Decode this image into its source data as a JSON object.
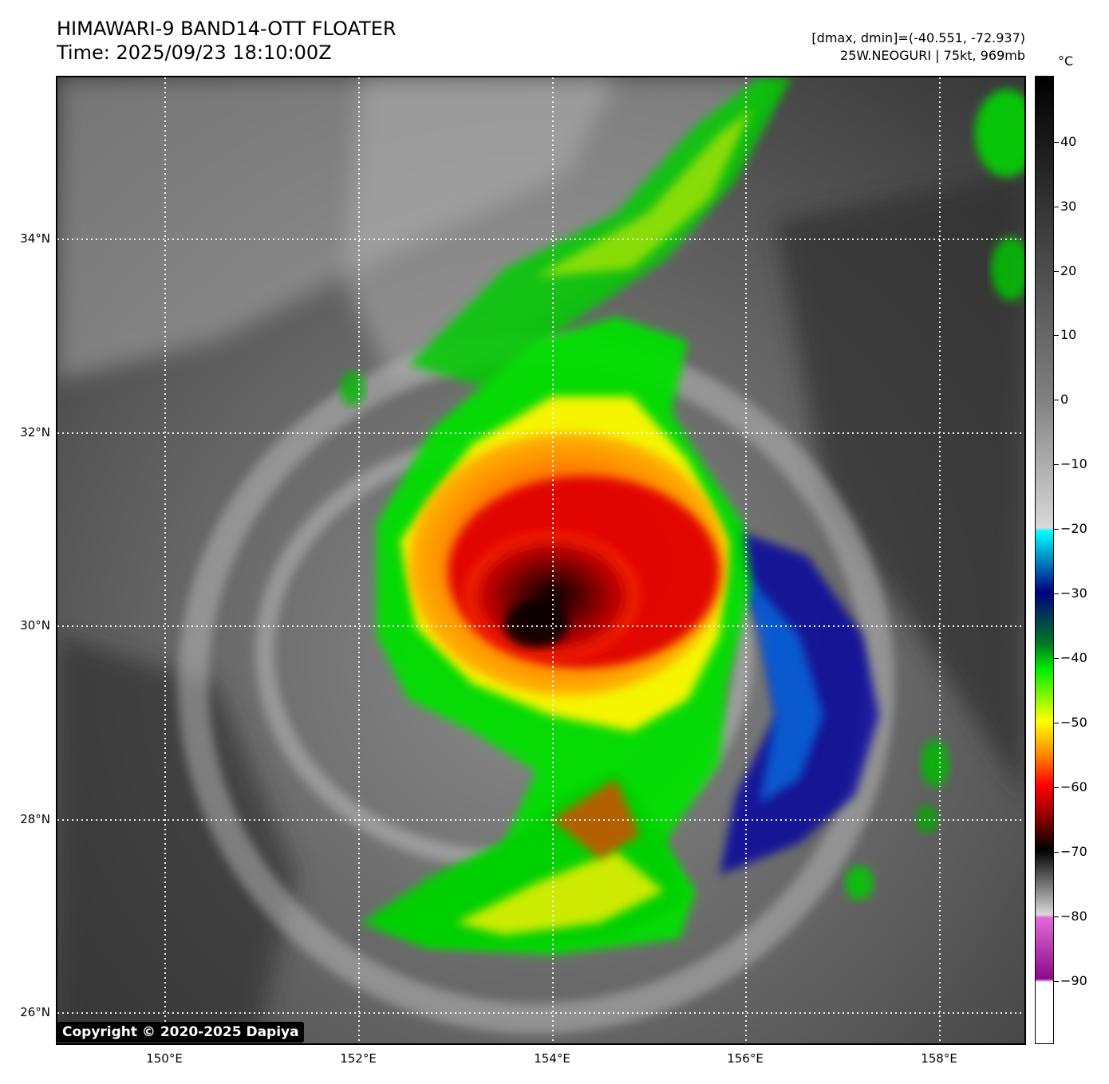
{
  "title": {
    "line1": "HIMAWARI-9 BAND14-OTT FLOATER",
    "line2": "Time: 2025/09/23 18:10:00Z"
  },
  "info": {
    "line1": "[dmax, dmin]=(-40.551, -72.937)",
    "line2": "25W.NEOGURI | 75kt, 969mb"
  },
  "map": {
    "lon_labels": [
      "150°E",
      "152°E",
      "154°E",
      "156°E",
      "158°E"
    ],
    "lat_labels": [
      "34°N",
      "32°N",
      "30°N",
      "28°N",
      "26°N"
    ],
    "storm_center": {
      "lon": 153.9,
      "lat": 30.0
    },
    "gridlines": true,
    "gridline_style": "white dotted"
  },
  "colorbar": {
    "unit": "°C",
    "tick_labels": [
      "40",
      "30",
      "20",
      "10",
      "0",
      "−10",
      "−20",
      "−30",
      "−40",
      "−50",
      "−60",
      "−70",
      "−80",
      "−90"
    ],
    "range": [
      -100,
      50
    ],
    "colors": {
      "white": "#ffffff",
      "magenta": "#8b0a8b",
      "pink": "#e26ad6",
      "light_gray": "#d9d9d9",
      "black": "#000000",
      "dark_red": "#8b0000",
      "red": "#ff0000",
      "orange": "#ff8c00",
      "yellow": "#ffff00",
      "green": "#00ee00",
      "dark_green": "#007a20",
      "navy": "#000080",
      "blue": "#0050ff",
      "cyan": "#00ffff",
      "gray": "#808080"
    }
  },
  "copyright": "Copyright © 2020-2025 Dapiya"
}
